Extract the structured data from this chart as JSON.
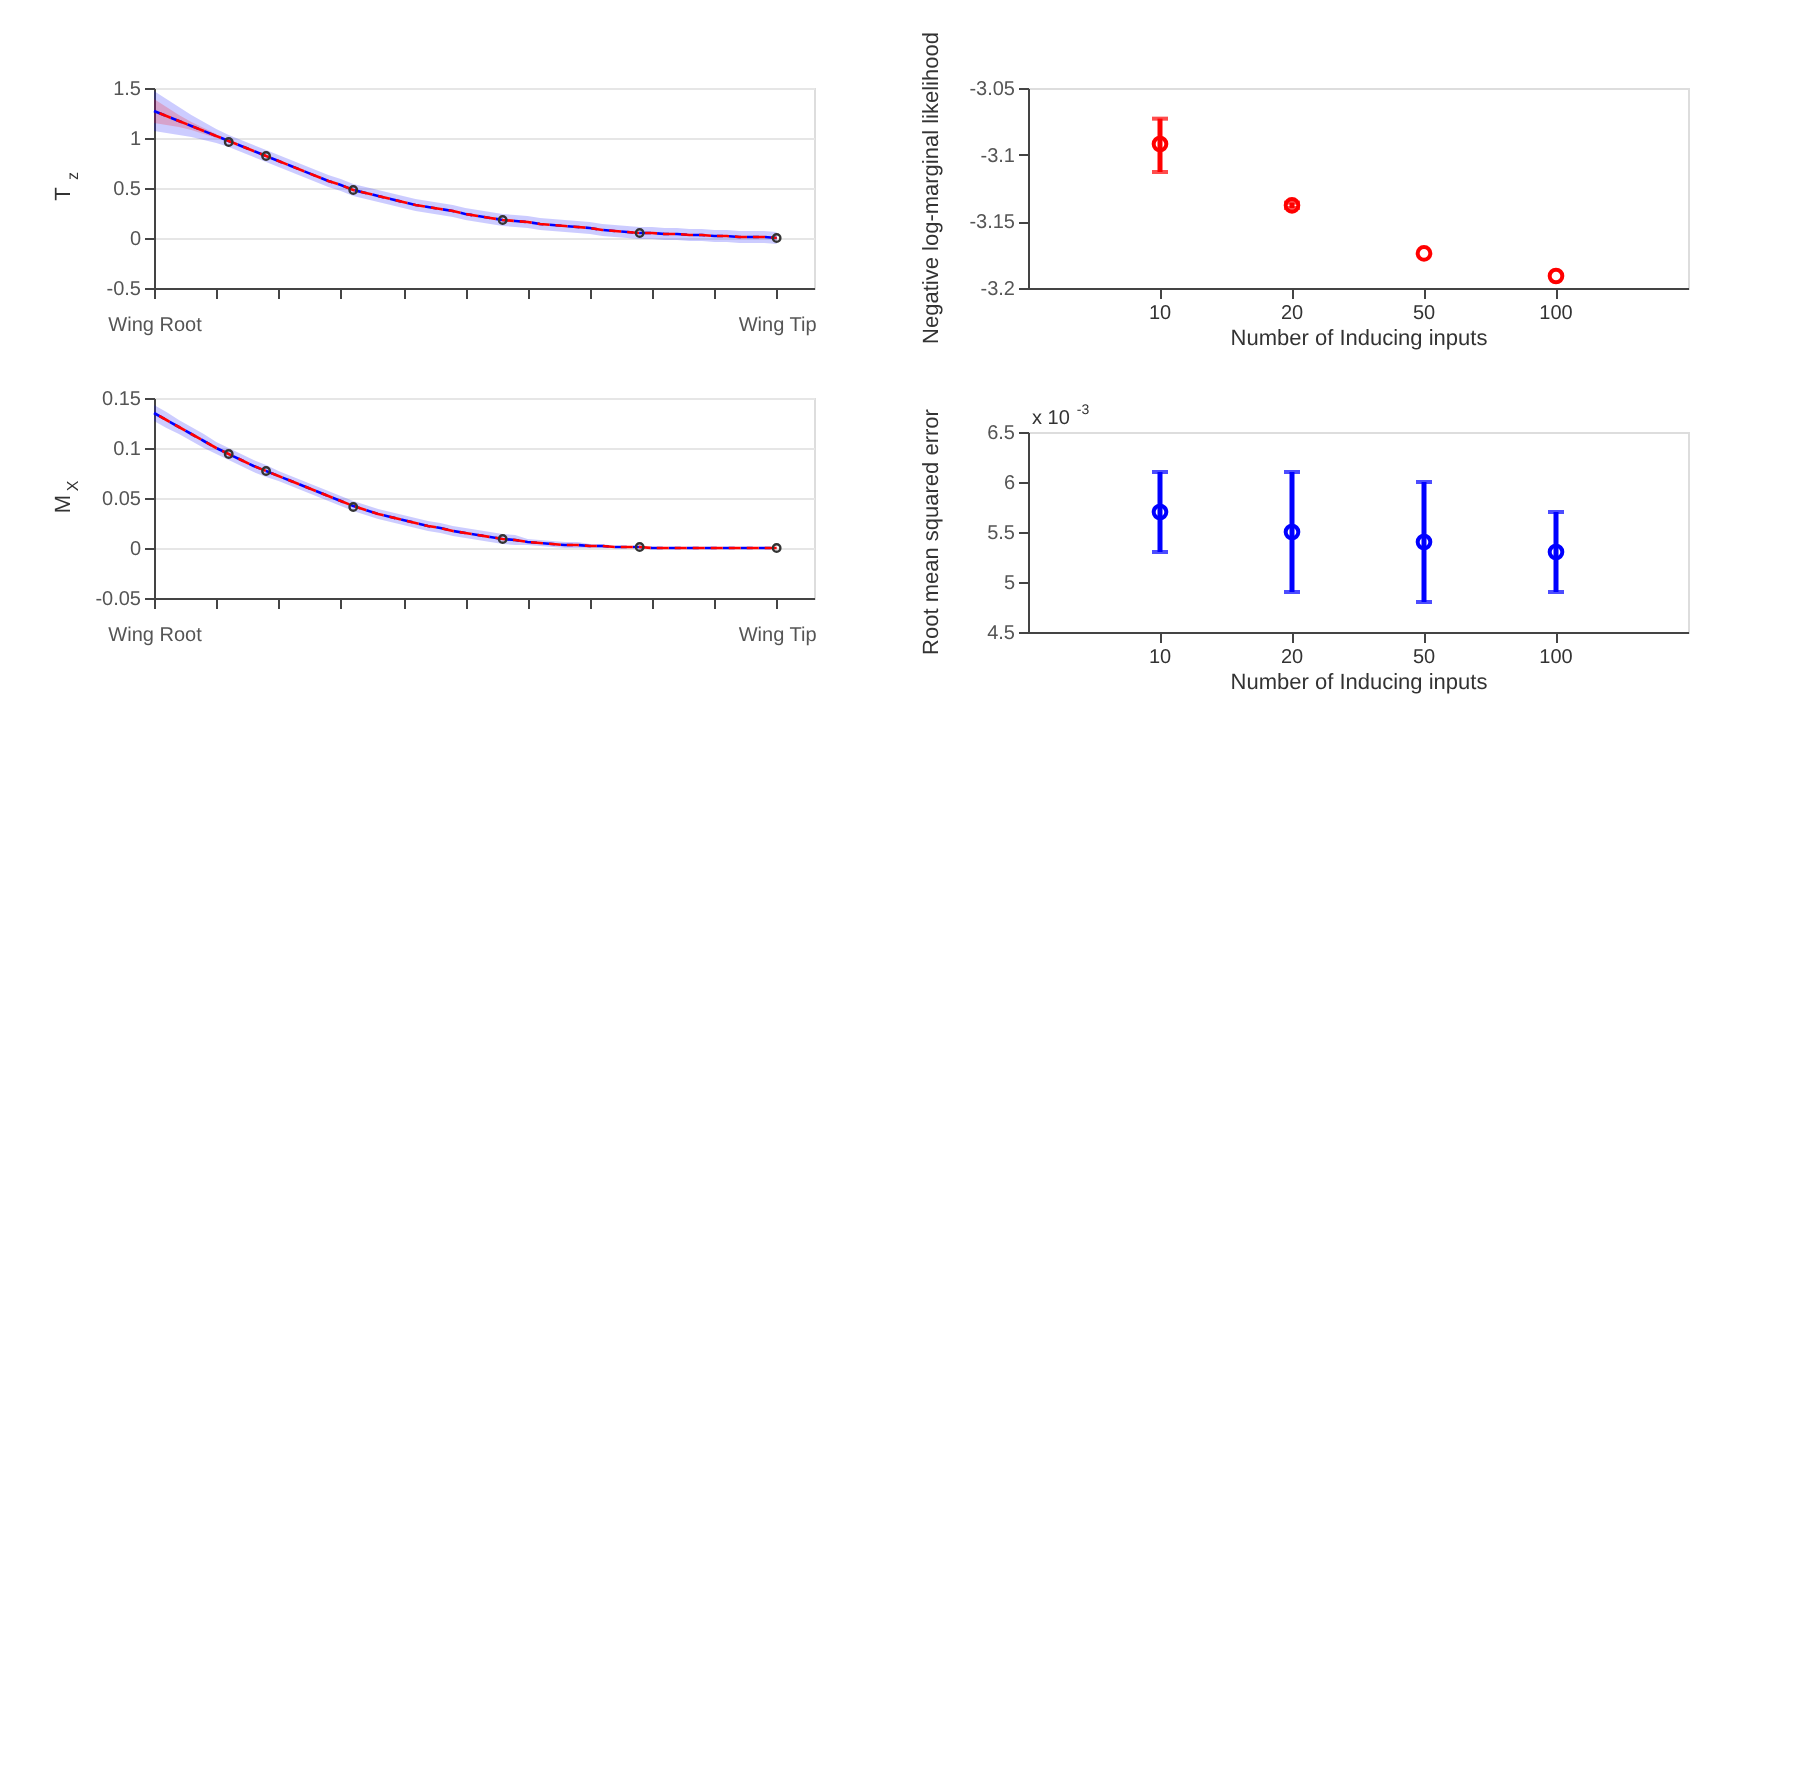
{
  "chart_data": [
    {
      "type": "line",
      "ylabel": "T$_{z}$",
      "categories": [
        "Wing Root",
        null,
        null,
        null,
        null,
        null,
        null,
        null,
        null,
        null,
        null,
        null,
        null,
        null,
        null,
        null,
        null,
        null,
        null,
        null,
        null,
        null,
        null,
        null,
        null,
        null,
        null,
        null,
        null,
        null,
        null,
        null,
        null,
        null,
        null,
        null,
        null,
        null,
        null,
        null,
        null,
        null,
        null,
        null,
        null,
        null,
        null,
        null,
        null,
        null,
        "Wing Tip",
        null,
        null,
        null
      ],
      "ylim": [
        -0.5,
        1.5
      ],
      "yticks": [
        -0.5,
        {
          "value": 0,
          "label": "0"
        },
        0.5,
        {
          "value": 1,
          "label": "1"
        },
        1.5
      ],
      "grid": "y",
      "series": [
        {
          "type": "line",
          "color": "#0000ff",
          "line_style": "dashed",
          "values": [
            1.27,
            1.22,
            1.17,
            1.12,
            1.07,
            1.02,
            0.97,
            0.92,
            0.87,
            0.82,
            0.77,
            0.72,
            0.67,
            0.62,
            0.57,
            0.53,
            0.48,
            0.45,
            0.42,
            0.39,
            0.36,
            0.33,
            0.31,
            0.29,
            0.27,
            0.24,
            0.22,
            0.2,
            0.18,
            0.17,
            0.16,
            0.14,
            0.13,
            0.12,
            0.11,
            0.1,
            0.08,
            0.07,
            0.06,
            0.05,
            0.05,
            0.04,
            0.04,
            0.03,
            0.03,
            0.02,
            0.02,
            0.01,
            0.01,
            0.01,
            0.0,
            null,
            null,
            null
          ],
          "lower": [
            1.07,
            1.05,
            1.03,
            1.01,
            0.98,
            0.95,
            0.91,
            0.86,
            0.81,
            0.76,
            0.71,
            0.66,
            0.61,
            0.56,
            0.51,
            0.47,
            0.42,
            0.39,
            0.36,
            0.33,
            0.3,
            0.27,
            0.25,
            0.23,
            0.21,
            0.18,
            0.16,
            0.14,
            0.12,
            0.11,
            0.1,
            0.08,
            0.07,
            0.06,
            0.05,
            0.04,
            0.02,
            0.01,
            0.0,
            -0.01,
            -0.01,
            -0.02,
            -0.02,
            -0.03,
            -0.03,
            -0.04,
            -0.04,
            -0.05,
            -0.05,
            -0.05,
            -0.06,
            null,
            null,
            null
          ],
          "upper": [
            1.47,
            1.39,
            1.31,
            1.23,
            1.16,
            1.09,
            1.03,
            0.98,
            0.93,
            0.88,
            0.83,
            0.78,
            0.73,
            0.68,
            0.63,
            0.59,
            0.54,
            0.51,
            0.48,
            0.45,
            0.42,
            0.39,
            0.37,
            0.35,
            0.33,
            0.3,
            0.28,
            0.26,
            0.24,
            0.23,
            0.22,
            0.2,
            0.19,
            0.18,
            0.17,
            0.16,
            0.14,
            0.13,
            0.12,
            0.11,
            0.11,
            0.1,
            0.1,
            0.09,
            0.09,
            0.08,
            0.08,
            0.07,
            0.07,
            0.07,
            0.06,
            null,
            null,
            null
          ]
        },
        {
          "type": "line",
          "color": "#ff0000",
          "line_style": "dashed",
          "values": [
            1.27,
            1.22,
            1.17,
            1.12,
            1.07,
            1.02,
            0.97,
            0.92,
            0.87,
            0.82,
            0.77,
            0.72,
            0.67,
            0.62,
            0.57,
            0.53,
            0.48,
            0.45,
            0.42,
            0.39,
            0.36,
            0.33,
            0.31,
            0.29,
            0.27,
            0.24,
            0.22,
            0.2,
            0.18,
            0.17,
            0.16,
            0.14,
            0.13,
            0.12,
            0.11,
            0.1,
            0.08,
            0.07,
            0.06,
            0.05,
            0.05,
            0.04,
            0.04,
            0.03,
            0.03,
            0.02,
            0.02,
            0.01,
            0.01,
            0.01,
            0.0,
            null,
            null,
            null
          ],
          "lower": [
            1.15,
            1.13,
            1.11,
            1.08,
            1.04,
            1.0,
            null,
            null,
            null,
            null,
            null,
            null,
            null,
            null,
            null,
            null,
            null,
            null,
            null,
            null,
            null,
            null,
            null,
            null,
            null,
            null,
            null,
            null,
            null,
            null,
            null,
            null,
            null,
            null,
            null,
            null,
            null,
            null,
            null,
            null,
            null,
            null,
            null,
            null,
            null,
            null,
            null,
            null,
            null,
            null,
            null,
            null,
            null,
            null
          ],
          "upper": [
            1.39,
            1.31,
            1.23,
            1.16,
            1.1,
            1.04,
            null,
            null,
            null,
            null,
            null,
            null,
            null,
            null,
            null,
            null,
            null,
            null,
            null,
            null,
            null,
            null,
            null,
            null,
            null,
            null,
            null,
            null,
            null,
            null,
            null,
            null,
            null,
            null,
            null,
            null,
            null,
            null,
            null,
            null,
            null,
            null,
            null,
            null,
            null,
            null,
            null,
            null,
            null,
            null,
            null,
            null,
            null,
            null
          ]
        },
        {
          "type": "scatter",
          "color": "#333333",
          "marker": "circle",
          "values": [
            null,
            null,
            null,
            null,
            null,
            null,
            0.96,
            null,
            null,
            0.82,
            null,
            null,
            null,
            null,
            null,
            null,
            0.48,
            null,
            null,
            null,
            null,
            null,
            null,
            null,
            null,
            null,
            null,
            null,
            0.18,
            null,
            null,
            null,
            null,
            null,
            null,
            null,
            null,
            null,
            null,
            0.05,
            null,
            null,
            null,
            null,
            null,
            null,
            null,
            null,
            null,
            null,
            0.0,
            null,
            null,
            null
          ]
        }
      ]
    },
    {
      "type": "scatter",
      "ylabel": "Negative log-marginal likelihood",
      "xlabel": "Number of Inducing inputs",
      "categories": [
        "10",
        "20",
        "50",
        "100"
      ],
      "ylim": [
        -3.2,
        -3.05
      ],
      "yticks": [
        {
          "value": -3.2,
          "label": "-3.2"
        },
        -3.15,
        {
          "value": -3.1,
          "label": "-3.1"
        },
        -3.05
      ],
      "grid": false,
      "series": [
        {
          "color": "#ff0000",
          "marker": "circle",
          "values": [
            -3.092,
            -3.138,
            -3.174,
            -3.191
          ],
          "errors": [
            [
              -3.113,
              -3.073
            ],
            0.002,
            null,
            null
          ]
        }
      ]
    },
    {
      "type": "line",
      "ylabel": "M$_{X}$",
      "categories": [
        "Wing Root",
        null,
        null,
        null,
        null,
        null,
        null,
        null,
        null,
        null,
        null,
        null,
        null,
        null,
        null,
        null,
        null,
        null,
        null,
        null,
        null,
        null,
        null,
        null,
        null,
        null,
        null,
        null,
        null,
        null,
        null,
        null,
        null,
        null,
        null,
        null,
        null,
        null,
        null,
        null,
        null,
        null,
        null,
        null,
        null,
        null,
        null,
        null,
        null,
        null,
        "Wing Tip",
        null,
        null,
        null
      ],
      "ylim": [
        -0.05,
        0.15
      ],
      "yticks": [
        -0.05,
        {
          "value": 0,
          "label": "0"
        },
        0.05,
        {
          "value": 0.1,
          "label": "0.1"
        },
        0.15
      ],
      "grid": "y",
      "series": [
        {
          "type": "line",
          "color": "#0000ff",
          "line_style": "dashed",
          "values": [
            0.135,
            0.128,
            0.121,
            0.114,
            0.107,
            0.1,
            0.094,
            0.088,
            0.082,
            0.077,
            0.072,
            0.067,
            0.062,
            0.057,
            0.052,
            0.047,
            0.042,
            0.038,
            0.034,
            0.031,
            0.028,
            0.025,
            0.022,
            0.02,
            0.017,
            0.015,
            0.013,
            0.011,
            0.009,
            0.008,
            0.006,
            0.005,
            0.004,
            0.003,
            0.003,
            0.002,
            0.002,
            0.001,
            0.001,
            0.001,
            0.0,
            0.0,
            0.0,
            0.0,
            0.0,
            0.0,
            0.0,
            0.0,
            0.0,
            0.0,
            0.0,
            null,
            null,
            null
          ],
          "lower": [
            0.127,
            0.12,
            0.114,
            0.107,
            0.1,
            0.094,
            0.088,
            0.082,
            0.076,
            0.071,
            0.067,
            0.062,
            0.057,
            0.052,
            0.047,
            0.042,
            0.037,
            0.033,
            0.029,
            0.026,
            0.023,
            0.02,
            0.017,
            0.015,
            0.012,
            0.01,
            0.008,
            0.006,
            0.004,
            0.003,
            0.003,
            0.002,
            0.001,
            0.0,
            0.0,
            0.0,
            0.0,
            0.0,
            0.0,
            0.001,
            0.0,
            0.0,
            0.0,
            0.0,
            0.0,
            0.0,
            0.0,
            0.0,
            0.0,
            0.0,
            0.0,
            null,
            null,
            null
          ],
          "upper": [
            0.143,
            0.136,
            0.128,
            0.121,
            0.114,
            0.106,
            0.1,
            0.094,
            0.088,
            0.083,
            0.077,
            0.072,
            0.067,
            0.062,
            0.057,
            0.052,
            0.047,
            0.043,
            0.039,
            0.036,
            0.033,
            0.03,
            0.027,
            0.025,
            0.022,
            0.02,
            0.018,
            0.016,
            0.014,
            0.013,
            0.009,
            0.008,
            0.007,
            0.006,
            0.006,
            0.004,
            0.004,
            0.002,
            0.002,
            0.001,
            0.0,
            0.0,
            0.0,
            0.0,
            0.0,
            0.0,
            0.0,
            0.0,
            0.0,
            0.0,
            0.0,
            null,
            null,
            null
          ]
        },
        {
          "type": "line",
          "color": "#ff0000",
          "line_style": "dashed",
          "values": [
            0.135,
            0.128,
            0.121,
            0.114,
            0.107,
            0.1,
            0.094,
            0.088,
            0.082,
            0.077,
            0.072,
            0.067,
            0.062,
            0.057,
            0.052,
            0.047,
            0.042,
            0.038,
            0.034,
            0.031,
            0.028,
            0.025,
            0.022,
            0.02,
            0.017,
            0.015,
            0.013,
            0.011,
            0.009,
            0.008,
            0.006,
            0.005,
            0.004,
            0.003,
            0.003,
            0.002,
            0.002,
            0.001,
            0.001,
            0.001,
            0.0,
            0.0,
            0.0,
            0.0,
            0.0,
            0.0,
            0.0,
            0.0,
            0.0,
            0.0,
            0.0,
            null,
            null,
            null
          ]
        },
        {
          "type": "scatter",
          "color": "#333333",
          "marker": "circle",
          "values": [
            null,
            null,
            null,
            null,
            null,
            null,
            0.094,
            null,
            null,
            0.077,
            null,
            null,
            null,
            null,
            null,
            null,
            0.041,
            null,
            null,
            null,
            null,
            null,
            null,
            null,
            null,
            null,
            null,
            null,
            0.009,
            null,
            null,
            null,
            null,
            null,
            null,
            null,
            null,
            null,
            null,
            0.001,
            null,
            null,
            null,
            null,
            null,
            null,
            null,
            null,
            null,
            null,
            0.0,
            null,
            null,
            null
          ]
        }
      ]
    },
    {
      "type": "scatter",
      "ylabel": "Root mean squared error",
      "xlabel": "Number of Inducing inputs",
      "categories": [
        "10",
        "20",
        "50",
        "100"
      ],
      "ylim": [
        4.5,
        6.5
      ],
      "yticks": [
        4.5,
        {
          "value": 5,
          "label": "5"
        },
        5.5,
        {
          "value": 6,
          "label": "6"
        },
        6.5
      ],
      "grid": false,
      "annotations": [
        "x 10$^{-3}$"
      ],
      "series": [
        {
          "color": "#0000ff",
          "marker": "circle",
          "values": [
            5.7,
            5.5,
            5.4,
            5.3
          ],
          "errors": [
            [
              5.3,
              6.1
            ],
            [
              4.9,
              6.1
            ],
            [
              4.8,
              6.0
            ],
            [
              4.9,
              5.7
            ]
          ]
        }
      ]
    }
  ]
}
